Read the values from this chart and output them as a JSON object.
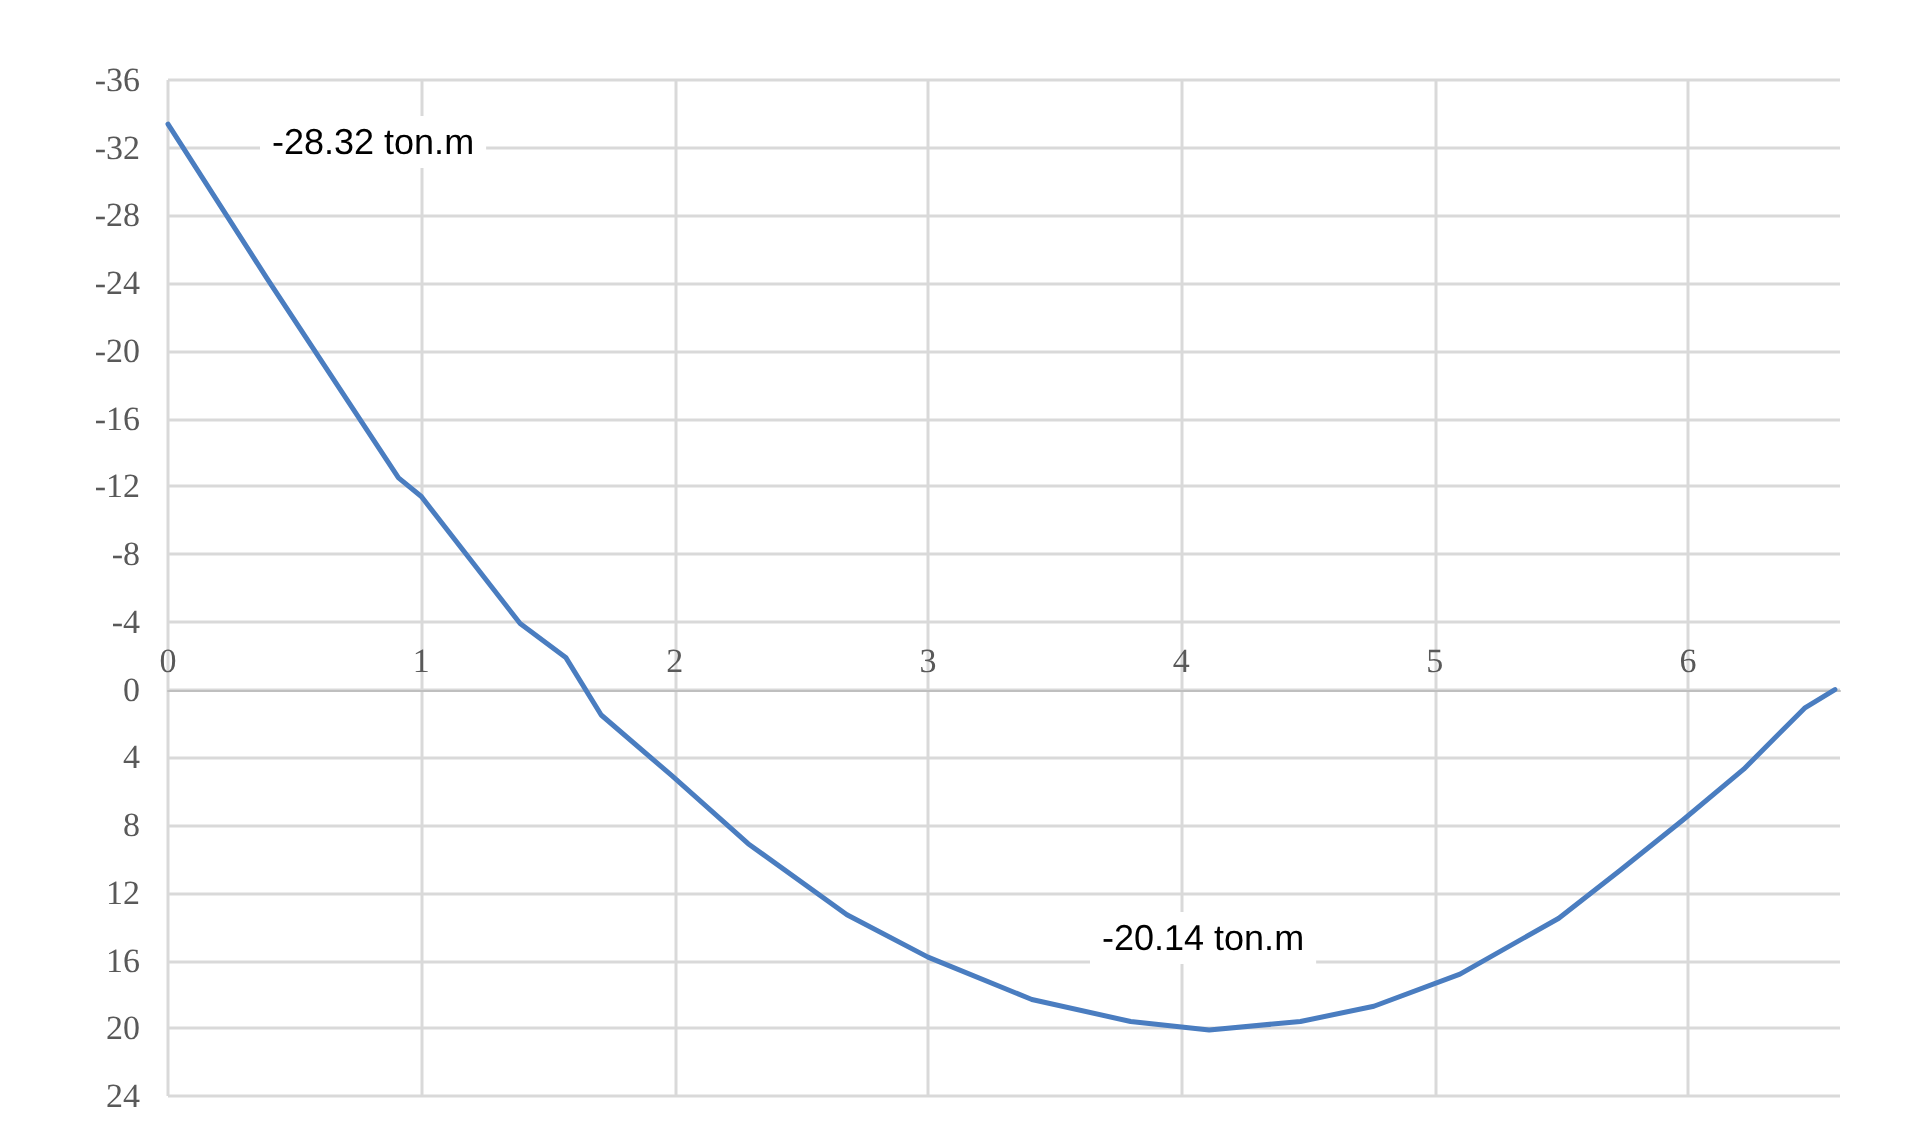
{
  "chart_data": {
    "type": "line",
    "x": [
      0,
      0.39,
      0.91,
      1,
      1.39,
      1.57,
      1.71,
      1.99,
      2.29,
      2.68,
      3.0,
      3.41,
      3.8,
      4.11,
      4.47,
      4.76,
      5.1,
      5.49,
      5.73,
      5.98,
      6.22,
      6.46,
      6.58
    ],
    "series": [
      {
        "color": "#4a7dc0",
        "values": [
          -33.4,
          -24.3,
          -12.5,
          -11.4,
          -3.9,
          -1.9,
          1.5,
          5.1,
          9.1,
          13.3,
          15.8,
          18.3,
          19.6,
          20.1,
          19.6,
          18.7,
          16.8,
          13.5,
          10.7,
          7.7,
          4.7,
          1.1,
          0
        ]
      }
    ],
    "xlim": [
      0,
      6.6
    ],
    "xticks": [
      0,
      1,
      2,
      3,
      4,
      5,
      6
    ],
    "ylim": [
      24,
      -36
    ],
    "yticks": [
      -36,
      -32,
      -28,
      -24,
      -20,
      -16,
      -12,
      -8,
      -4,
      0,
      4,
      8,
      12,
      16,
      20,
      24
    ],
    "annotations": [
      "-28.32 ton.m",
      "-20.14 ton.m"
    ],
    "grid": true,
    "marker": "none",
    "line_style": "solid"
  }
}
